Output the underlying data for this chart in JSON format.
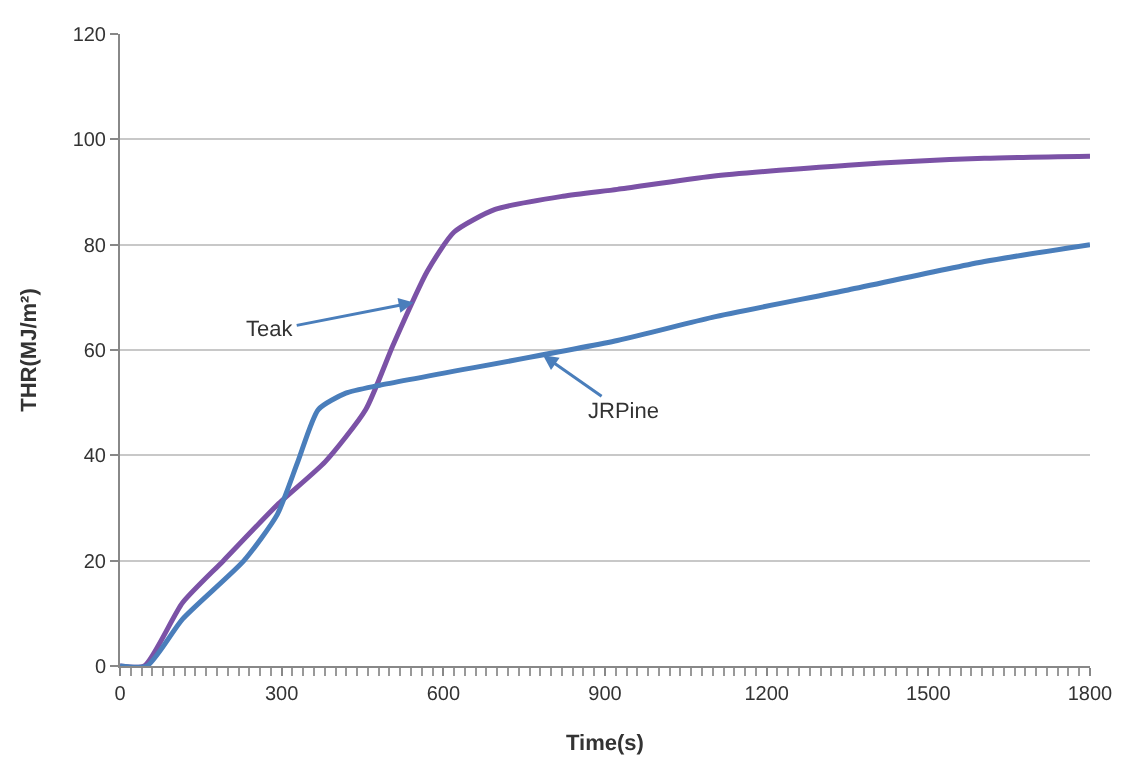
{
  "chart_data": {
    "type": "line",
    "xlabel": "Time(s)",
    "ylabel": "THR(MJ/m²)",
    "xlim": [
      0,
      1800
    ],
    "xticks": [
      0,
      300,
      600,
      900,
      1200,
      1500,
      1800
    ],
    "ylim": [
      0,
      120
    ],
    "yticks": [
      0,
      20,
      40,
      60,
      80,
      100,
      120
    ],
    "grid": "y",
    "legend": false,
    "marker": "none",
    "line_style": "solid",
    "series": [
      {
        "color": "#7b52a6",
        "x": [
          0,
          45,
          116,
          192,
          292,
          381,
          456,
          507,
          570,
          620,
          696,
          822,
          923,
          1099,
          1351,
          1604,
          1800
        ],
        "values": [
          0,
          0,
          12,
          20,
          30.6,
          38.8,
          48.7,
          61,
          74.9,
          82.4,
          86.7,
          89.2,
          90.5,
          93,
          95.1,
          96.4,
          96.8
        ]
      },
      {
        "color": "#4a7ebb",
        "x": [
          0,
          50,
          116,
          230,
          292,
          330,
          368,
          419,
          482,
          923,
          1099,
          1351,
          1604,
          1800
        ],
        "values": [
          0,
          0,
          8.9,
          20,
          28.8,
          38.8,
          48.7,
          51.8,
          53.3,
          61.8,
          66.2,
          71.4,
          76.8,
          80
        ]
      }
    ],
    "annotations": [
      {
        "text": "Teak",
        "x": 545,
        "y": 69
      },
      {
        "text": "JRPine",
        "x": 785,
        "y": 59
      }
    ]
  }
}
